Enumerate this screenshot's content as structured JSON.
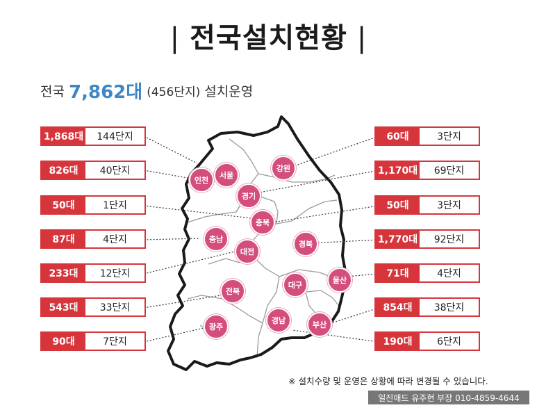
{
  "title": "전국설치현황",
  "title_bar": "|",
  "summary": {
    "prefix": "전국",
    "total": "7,862대",
    "complexes": "(456단지)",
    "suffix": "설치운영"
  },
  "left_stats": [
    {
      "count": "1,868대",
      "complexes": "144단지"
    },
    {
      "count": "826대",
      "complexes": "40단지"
    },
    {
      "count": "50대",
      "complexes": "1단지"
    },
    {
      "count": "87대",
      "complexes": "4단지"
    },
    {
      "count": "233대",
      "complexes": "12단지"
    },
    {
      "count": "543대",
      "complexes": "33단지"
    },
    {
      "count": "90대",
      "complexes": "7단지"
    }
  ],
  "right_stats": [
    {
      "count": "60대",
      "complexes": "3단지"
    },
    {
      "count": "1,170대",
      "complexes": "69단지"
    },
    {
      "count": "50대",
      "complexes": "3단지"
    },
    {
      "count": "1,770대",
      "complexes": "92단지"
    },
    {
      "count": "71대",
      "complexes": "4단지"
    },
    {
      "count": "854대",
      "complexes": "38단지"
    },
    {
      "count": "190대",
      "complexes": "6단지"
    }
  ],
  "regions": {
    "incheon": "인천",
    "seoul": "서울",
    "gyeonggi": "경기",
    "gangwon": "강원",
    "chungbuk": "충북",
    "chungnam": "충남",
    "daejeon": "대전",
    "gyeongbuk": "경북",
    "jeonbuk": "전북",
    "daegu": "대구",
    "ulsan": "울산",
    "gwangju": "광주",
    "gyeongnam": "경남",
    "busan": "부산"
  },
  "note": "※ 설치수량 및 운영은 상황에 따라 변경될 수 있습니다.",
  "footer": "일진애드 유주현 부장  010-4859-4644",
  "colors": {
    "accent": "#d7353c",
    "highlight": "#3f86c6",
    "city": "#d34e7d",
    "footer_bg": "#777777"
  }
}
